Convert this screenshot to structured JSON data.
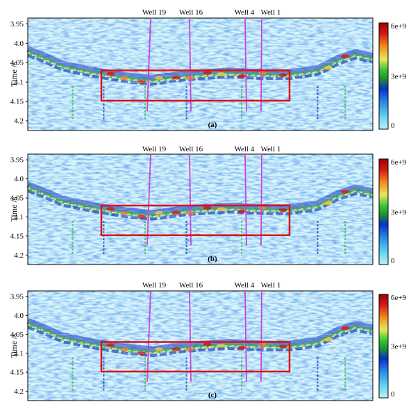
{
  "chart_data": {
    "type": "heatmap",
    "ylabel": "Time /s",
    "y_ticks": [
      "3.95",
      "4.0",
      "4.05",
      "4.1",
      "4.15",
      "4.2"
    ],
    "ylim": [
      3.935,
      4.225
    ],
    "y_direction": "down",
    "wells": [
      "Well 19",
      "Well 16",
      "Well 4",
      "Well 1"
    ],
    "colorbar": {
      "ticks": [
        "6e+9",
        "3e+9",
        "0"
      ],
      "range": [
        0,
        6000000000
      ],
      "colors": [
        "#bfeffa",
        "#5fd4f0",
        "#2b8ce6",
        "#0a2fc8",
        "#1a9a2a",
        "#3fc43a",
        "#e8e85a",
        "#f08a1c",
        "#d41818",
        "#a00000"
      ]
    },
    "highlight_box": {
      "time_range": [
        4.07,
        4.148
      ],
      "color": "#e01010"
    },
    "panels": [
      {
        "label": "(a)"
      },
      {
        "label": "(b)"
      },
      {
        "label": "(c)"
      }
    ]
  }
}
